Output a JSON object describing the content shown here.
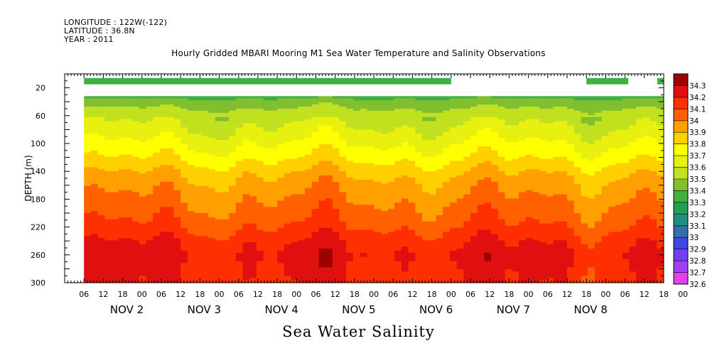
{
  "header": {
    "longitude": "LONGITUDE : 122W(-122)",
    "latitude": "LATITUDE : 36.8N",
    "year": "YEAR : 2011"
  },
  "chart_data": {
    "type": "heatmap",
    "title": "Hourly Gridded MBARI Mooring M1 Sea Water Temperature and Salinity Observations",
    "variable_label": "Sea Water Salinity",
    "ylabel": "DEPTH (m)",
    "ylim": [
      300,
      0
    ],
    "y_ticks": [
      20,
      60,
      100,
      140,
      180,
      220,
      260,
      300
    ],
    "x_hour_ticks": [
      "06",
      "12",
      "18",
      "00",
      "06",
      "12",
      "18",
      "00",
      "06",
      "12",
      "18",
      "00",
      "06",
      "12",
      "18",
      "00",
      "06",
      "12",
      "18",
      "00",
      "06",
      "12",
      "18",
      "00",
      "06",
      "12",
      "18",
      "00",
      "06",
      "12",
      "18",
      "00"
    ],
    "x_day_labels": [
      "NOV  2",
      "NOV  3",
      "NOV  4",
      "NOV  5",
      "NOV  6",
      "NOV  7",
      "NOV  8"
    ],
    "x_range_hours": [
      0,
      186
    ],
    "data_start_hour": 6,
    "colorbar": {
      "levels": [
        32.6,
        32.7,
        32.8,
        32.9,
        33,
        33.1,
        33.2,
        33.3,
        33.4,
        33.5,
        33.6,
        33.7,
        33.8,
        33.9,
        34,
        34.1,
        34.2,
        34.3
      ],
      "colors": [
        "#e040f0",
        "#a040f0",
        "#7040f0",
        "#4048e0",
        "#3070b0",
        "#209080",
        "#20a050",
        "#40b040",
        "#80c030",
        "#c0e020",
        "#e8f010",
        "#ffff00",
        "#ffd000",
        "#ffa000",
        "#ff6000",
        "#ff3000",
        "#e01010",
        "#a00000"
      ]
    },
    "surface_layer": {
      "depth_range": [
        6,
        15
      ],
      "salinity": 33.3,
      "segments_hours": [
        [
          6,
          120
        ],
        [
          162,
          175
        ],
        [
          184,
          192
        ]
      ]
    },
    "profile": {
      "depth_range": [
        32,
        300
      ],
      "depths": [
        32,
        40,
        60,
        80,
        100,
        120,
        140,
        160,
        180,
        200,
        220,
        240,
        260,
        280,
        300
      ],
      "salinity": [
        33.35,
        33.45,
        33.55,
        33.62,
        33.7,
        33.78,
        33.88,
        33.95,
        34.0,
        34.05,
        34.1,
        34.18,
        34.22,
        34.2,
        34.18
      ]
    }
  }
}
